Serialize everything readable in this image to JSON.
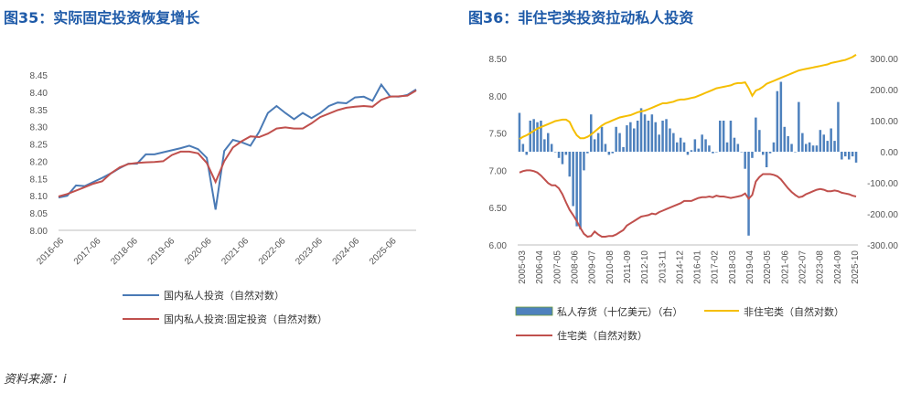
{
  "left": {
    "title": "图35：实际固定投资恢复增长",
    "chart_data": {
      "type": "line",
      "ylim": [
        8.0,
        8.45
      ],
      "yticks": [
        "8.00",
        "8.05",
        "8.10",
        "8.15",
        "8.20",
        "8.25",
        "8.30",
        "8.35",
        "8.40",
        "8.45"
      ],
      "xticks": [
        "2016-06",
        "2017-06",
        "2018-06",
        "2019-06",
        "2020-06",
        "2021-06",
        "2022-06",
        "2023-06",
        "2024-06",
        "2025-06"
      ],
      "x_start": "2016-06",
      "x_step_quarters": 1,
      "series": [
        {
          "name": "国内私人投资（自然对数）",
          "color": "#4a7ab5",
          "values": [
            8.095,
            8.1,
            8.13,
            8.128,
            8.14,
            8.152,
            8.165,
            8.18,
            8.193,
            8.193,
            8.22,
            8.22,
            8.226,
            8.232,
            8.238,
            8.245,
            8.235,
            8.21,
            8.06,
            8.23,
            8.262,
            8.255,
            8.245,
            8.285,
            8.34,
            8.36,
            8.34,
            8.322,
            8.34,
            8.325,
            8.34,
            8.36,
            8.37,
            8.368,
            8.385,
            8.387,
            8.375,
            8.422,
            8.388,
            8.387,
            8.392,
            8.408
          ]
        },
        {
          "name": "国内私人投资:固定投资（自然对数）",
          "color": "#c0504d",
          "values": [
            8.098,
            8.105,
            8.115,
            8.125,
            8.135,
            8.142,
            8.165,
            8.182,
            8.192,
            8.195,
            8.197,
            8.198,
            8.2,
            8.218,
            8.228,
            8.228,
            8.223,
            8.195,
            8.14,
            8.2,
            8.24,
            8.258,
            8.272,
            8.27,
            8.28,
            8.295,
            8.298,
            8.295,
            8.295,
            8.31,
            8.328,
            8.338,
            8.348,
            8.355,
            8.358,
            8.36,
            8.358,
            8.378,
            8.387,
            8.388,
            8.39,
            8.405
          ]
        }
      ]
    }
  },
  "right": {
    "title": "图36：非住宅类投资拉动私人投资",
    "chart_data": {
      "type": "bar+line",
      "left_ylim": [
        6.0,
        8.5
      ],
      "left_yticks": [
        "6.00",
        "6.50",
        "7.00",
        "7.50",
        "8.00",
        "8.50"
      ],
      "right_ylim": [
        -300,
        300
      ],
      "right_yticks": [
        "-300.00",
        "-200.00",
        "-100.00",
        "0.00",
        "100.00",
        "200.00",
        "300.00"
      ],
      "xticks": [
        "2005-03",
        "2006-04",
        "2007-05",
        "2008-06",
        "2009-07",
        "2010-08",
        "2011-09",
        "2012-10",
        "2013-11",
        "2014-12",
        "2016-01",
        "2017-02",
        "2018-03",
        "2019-04",
        "2020-05",
        "2021-06",
        "2022-07",
        "2023-08",
        "2024-09",
        "2025-10"
      ],
      "x_start": "2005-03",
      "bars": {
        "name": "私人存货（十亿美元）（右）",
        "color": "#4e81bd",
        "values": [
          125,
          25,
          -10,
          100,
          105,
          95,
          100,
          40,
          60,
          25,
          0,
          -20,
          -40,
          -10,
          -80,
          -175,
          -240,
          -250,
          -60,
          -5,
          120,
          40,
          60,
          80,
          25,
          -10,
          -5,
          80,
          60,
          15,
          85,
          95,
          75,
          100,
          140,
          120,
          100,
          120,
          95,
          55,
          100,
          105,
          75,
          60,
          30,
          45,
          30,
          -10,
          5,
          40,
          10,
          55,
          40,
          20,
          -5,
          0,
          100,
          100,
          30,
          100,
          45,
          25,
          0,
          -55,
          -270,
          -20,
          110,
          70,
          -10,
          -50,
          -5,
          30,
          195,
          225,
          80,
          50,
          25,
          0,
          160,
          60,
          25,
          30,
          20,
          20,
          70,
          55,
          35,
          75,
          35,
          160,
          -25,
          -15,
          -25,
          -15,
          -35
        ]
      },
      "series": [
        {
          "name": "非住宅类（自然对数）",
          "color": "#f5be00",
          "values": [
            7.42,
            7.45,
            7.47,
            7.5,
            7.53,
            7.56,
            7.58,
            7.6,
            7.62,
            7.64,
            7.66,
            7.67,
            7.68,
            7.68,
            7.65,
            7.55,
            7.47,
            7.43,
            7.43,
            7.45,
            7.48,
            7.52,
            7.56,
            7.6,
            7.63,
            7.65,
            7.67,
            7.69,
            7.71,
            7.72,
            7.73,
            7.74,
            7.76,
            7.78,
            7.79,
            7.8,
            7.82,
            7.84,
            7.86,
            7.88,
            7.9,
            7.9,
            7.91,
            7.92,
            7.94,
            7.95,
            7.95,
            7.96,
            7.97,
            7.98,
            8.0,
            8.02,
            8.04,
            8.06,
            8.08,
            8.1,
            8.11,
            8.12,
            8.13,
            8.14,
            8.16,
            8.17,
            8.17,
            8.18,
            8.1,
            8.0,
            8.07,
            8.09,
            8.12,
            8.16,
            8.18,
            8.2,
            8.22,
            8.24,
            8.26,
            8.28,
            8.3,
            8.32,
            8.34,
            8.35,
            8.36,
            8.37,
            8.38,
            8.39,
            8.4,
            8.41,
            8.42,
            8.44,
            8.45,
            8.46,
            8.47,
            8.48,
            8.5,
            8.52,
            8.55
          ]
        },
        {
          "name": "住宅类（自然对数）",
          "color": "#c0504d",
          "values": [
            6.97,
            6.99,
            7.0,
            7.0,
            6.99,
            6.97,
            6.93,
            6.88,
            6.83,
            6.8,
            6.8,
            6.76,
            6.68,
            6.57,
            6.47,
            6.4,
            6.32,
            6.23,
            6.15,
            6.11,
            6.12,
            6.18,
            6.14,
            6.11,
            6.11,
            6.12,
            6.12,
            6.14,
            6.17,
            6.2,
            6.26,
            6.29,
            6.32,
            6.35,
            6.38,
            6.39,
            6.4,
            6.42,
            6.41,
            6.44,
            6.46,
            6.48,
            6.5,
            6.52,
            6.54,
            6.56,
            6.59,
            6.59,
            6.59,
            6.61,
            6.63,
            6.64,
            6.64,
            6.65,
            6.64,
            6.66,
            6.65,
            6.65,
            6.64,
            6.63,
            6.64,
            6.65,
            6.66,
            6.69,
            6.62,
            6.67,
            6.85,
            6.91,
            6.95,
            6.95,
            6.95,
            6.94,
            6.92,
            6.88,
            6.82,
            6.76,
            6.71,
            6.67,
            6.64,
            6.65,
            6.68,
            6.7,
            6.72,
            6.74,
            6.75,
            6.74,
            6.72,
            6.72,
            6.73,
            6.72,
            6.7,
            6.69,
            6.68,
            6.66,
            6.65
          ]
        }
      ]
    }
  },
  "source": "资料来源：i"
}
